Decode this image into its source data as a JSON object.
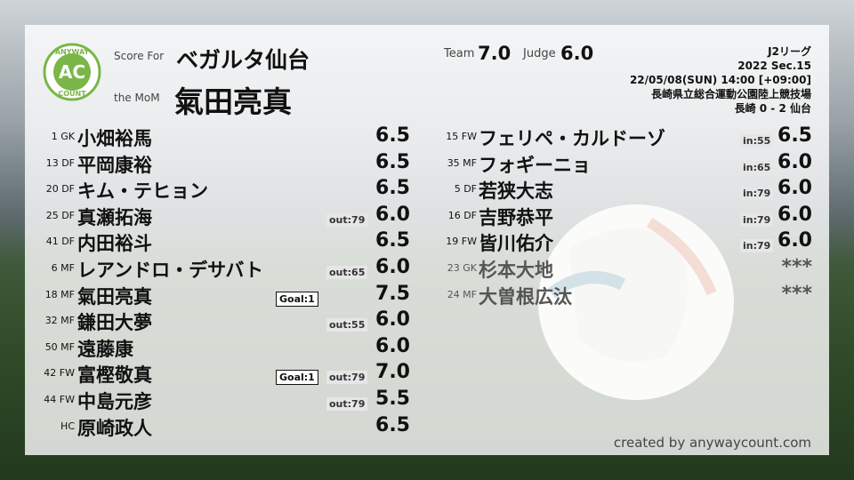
{
  "logo": {
    "top": "ANYWAY",
    "center": "AC",
    "bottom": "COUNT"
  },
  "header": {
    "score_for_label": "Score For",
    "team": "ベガルタ仙台",
    "mom_label": "the MoM",
    "mom": "氣田亮真",
    "team_label": "Team",
    "team_rating": "7.0",
    "judge_label": "Judge",
    "judge_rating": "6.0",
    "match_info": [
      "J2リーグ",
      "2022 Sec.15",
      "22/05/08(SUN) 14:00 [+09:00]",
      "長崎県立総合運動公園陸上競技場",
      "長崎 0 - 2 仙台"
    ]
  },
  "starters": [
    {
      "pos": "1 GK",
      "name": "小畑裕馬",
      "rating": "6.5"
    },
    {
      "pos": "13 DF",
      "name": "平岡康裕",
      "rating": "6.5"
    },
    {
      "pos": "20 DF",
      "name": "キム・テヒョン",
      "rating": "6.5"
    },
    {
      "pos": "25 DF",
      "name": "真瀬拓海",
      "sub": "out:79",
      "rating": "6.0"
    },
    {
      "pos": "41 DF",
      "name": "内田裕斗",
      "rating": "6.5"
    },
    {
      "pos": "6 MF",
      "name": "レアンドロ・デサバト",
      "sub": "out:65",
      "rating": "6.0"
    },
    {
      "pos": "18 MF",
      "name": "氣田亮真",
      "goal": "Goal:1",
      "rating": "7.5"
    },
    {
      "pos": "32 MF",
      "name": "鎌田大夢",
      "sub": "out:55",
      "rating": "6.0"
    },
    {
      "pos": "50 MF",
      "name": "遠藤康",
      "rating": "6.0"
    },
    {
      "pos": "42 FW",
      "name": "富樫敬真",
      "goal": "Goal:1",
      "sub": "out:79",
      "rating": "7.0"
    },
    {
      "pos": "44 FW",
      "name": "中島元彦",
      "sub": "out:79",
      "rating": "5.5"
    },
    {
      "pos": "HC",
      "name": "原崎政人",
      "rating": "6.5"
    }
  ],
  "substitutes": [
    {
      "pos": "15 FW",
      "name": "フェリペ・カルドーゾ",
      "sub": "in:55",
      "rating": "6.5"
    },
    {
      "pos": "35 MF",
      "name": "フォギーニョ",
      "sub": "in:65",
      "rating": "6.0"
    },
    {
      "pos": "5 DF",
      "name": "若狭大志",
      "sub": "in:79",
      "rating": "6.0"
    },
    {
      "pos": "16 DF",
      "name": "吉野恭平",
      "sub": "in:79",
      "rating": "6.0"
    },
    {
      "pos": "19 FW",
      "name": "皆川佑介",
      "sub": "in:79",
      "rating": "6.0"
    },
    {
      "pos": "23 GK",
      "name": "杉本大地",
      "rating": "***"
    },
    {
      "pos": "24 MF",
      "name": "大曽根広汰",
      "rating": "***"
    }
  ],
  "footer": "created by anywaycount.com"
}
